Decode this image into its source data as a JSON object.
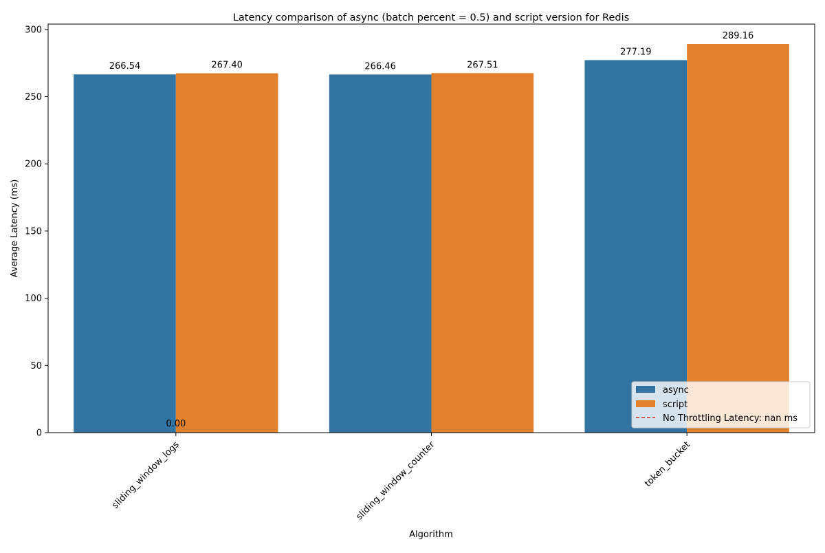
{
  "chart_data": {
    "type": "bar",
    "title": "Latency comparison of async (batch percent = 0.5) and script version for Redis",
    "xlabel": "Algorithm",
    "ylabel": "Average Latency (ms)",
    "categories": [
      "sliding_window_logs",
      "sliding_window_counter",
      "token_bucket"
    ],
    "series": [
      {
        "name": "async",
        "values": [
          266.54,
          266.46,
          277.19
        ],
        "labels": [
          "266.54",
          "266.46",
          "277.19"
        ],
        "color": "#3274a1"
      },
      {
        "name": "script",
        "values": [
          267.4,
          267.51,
          289.16
        ],
        "labels": [
          "267.40",
          "267.51",
          "289.16"
        ],
        "color": "#e1812c"
      }
    ],
    "extra_labels": [
      {
        "category": "sliding_window_logs",
        "value": 0,
        "text": "0.00"
      }
    ],
    "reference_line": {
      "label": "No Throttling Latency: nan ms",
      "color": "#d62728",
      "style": "dashed"
    },
    "ylim": [
      0,
      304
    ],
    "yticks": [
      0,
      50,
      100,
      150,
      200,
      250,
      300
    ],
    "grid": false,
    "legend_position": "lower-right",
    "xtick_rotation": 45
  }
}
